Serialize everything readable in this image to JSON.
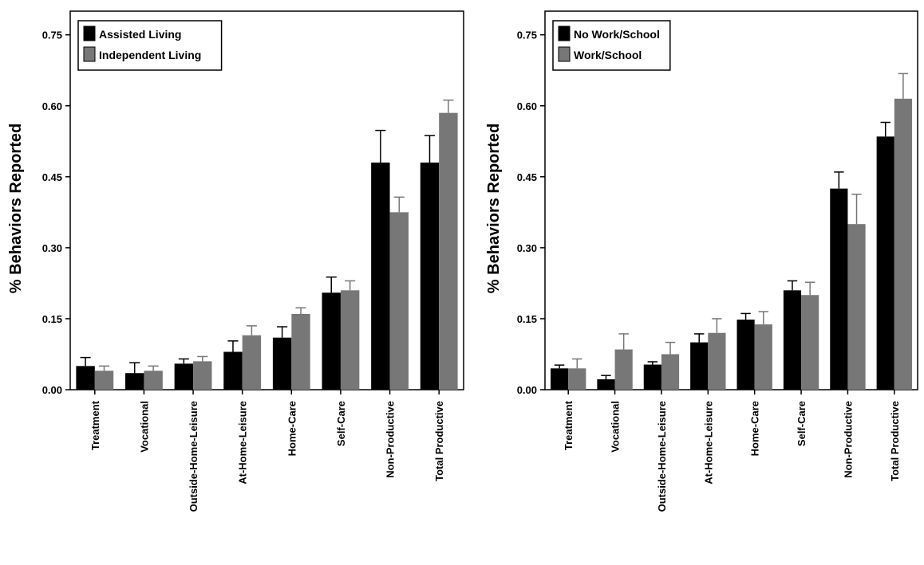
{
  "chart_data": [
    {
      "type": "bar",
      "title": "",
      "xlabel": "",
      "ylabel": "% Behaviors Reported",
      "ylim": [
        0,
        0.8
      ],
      "yticks": [
        "0.00",
        "0.15",
        "0.30",
        "0.45",
        "0.60",
        "0.75"
      ],
      "ytick_values": [
        0,
        0.15,
        0.3,
        0.45,
        0.6,
        0.75
      ],
      "legend_position": "top-left",
      "categories": [
        "Treatment",
        "Vocational",
        "Outside-Home-Leisure",
        "At-Home-Leisure",
        "Home-Care",
        "Self-Care",
        "Non-Productive",
        "Total Productive"
      ],
      "series": [
        {
          "name": "Assisted Living",
          "color": "#000000",
          "values": [
            0.05,
            0.035,
            0.055,
            0.08,
            0.11,
            0.205,
            0.48,
            0.48
          ],
          "errors": [
            0.018,
            0.022,
            0.01,
            0.023,
            0.023,
            0.033,
            0.068,
            0.057
          ]
        },
        {
          "name": "Independent Living",
          "color": "#777777",
          "values": [
            0.04,
            0.04,
            0.06,
            0.115,
            0.16,
            0.21,
            0.375,
            0.585
          ],
          "errors": [
            0.01,
            0.01,
            0.01,
            0.02,
            0.013,
            0.02,
            0.032,
            0.027
          ]
        }
      ]
    },
    {
      "type": "bar",
      "title": "",
      "xlabel": "",
      "ylabel": "% Behaviors Reported",
      "ylim": [
        0,
        0.8
      ],
      "yticks": [
        "0.00",
        "0.15",
        "0.30",
        "0.45",
        "0.60",
        "0.75"
      ],
      "ytick_values": [
        0,
        0.15,
        0.3,
        0.45,
        0.6,
        0.75
      ],
      "legend_position": "top-left",
      "categories": [
        "Treatment",
        "Vocational",
        "Outside-Home-Leisure",
        "At-Home-Leisure",
        "Home-Care",
        "Self-Care",
        "Non-Productive",
        "Total Productive"
      ],
      "series": [
        {
          "name": "No Work/School",
          "color": "#000000",
          "values": [
            0.045,
            0.022,
            0.053,
            0.1,
            0.148,
            0.21,
            0.425,
            0.535
          ],
          "errors": [
            0.007,
            0.008,
            0.006,
            0.018,
            0.013,
            0.02,
            0.035,
            0.03
          ]
        },
        {
          "name": "Work/School",
          "color": "#777777",
          "values": [
            0.045,
            0.085,
            0.075,
            0.12,
            0.138,
            0.2,
            0.35,
            0.615
          ],
          "errors": [
            0.02,
            0.033,
            0.025,
            0.03,
            0.027,
            0.027,
            0.063,
            0.053
          ]
        }
      ]
    }
  ]
}
